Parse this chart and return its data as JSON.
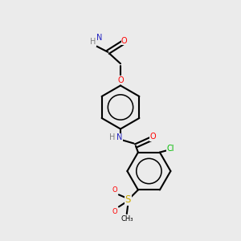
{
  "bg_color": "#ebebeb",
  "bond_color": "#000000",
  "atom_colors": {
    "N": "#2020c0",
    "O": "#ff0000",
    "Cl": "#00bb00",
    "S": "#ccaa00",
    "H": "#808080",
    "C": "#000000"
  }
}
